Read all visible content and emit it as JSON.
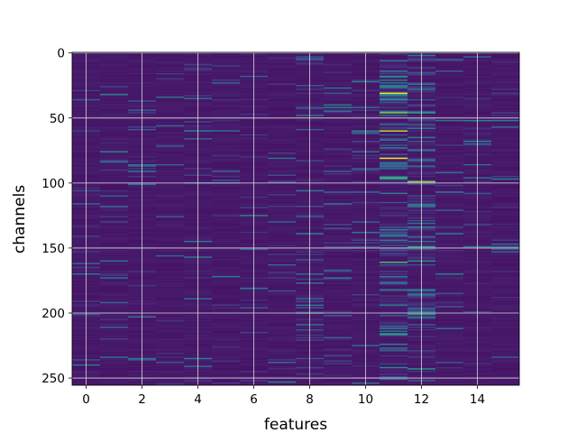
{
  "chart_data": {
    "type": "heatmap",
    "xlabel": "features",
    "ylabel": "channels",
    "x_ticks": [
      0,
      2,
      4,
      6,
      8,
      10,
      12,
      14
    ],
    "y_ticks": [
      0,
      50,
      100,
      150,
      200,
      250
    ],
    "xlim": [
      -0.5,
      15.5
    ],
    "ylim": [
      255.5,
      -0.5
    ],
    "grid": true,
    "colormap": "viridis",
    "colormap_stops": [
      "#440154",
      "#482878",
      "#3e4a89",
      "#31688e",
      "#26828e",
      "#1f9e89",
      "#35b779",
      "#6dcd59",
      "#b4de2c",
      "#fde725"
    ],
    "n_features": 16,
    "n_channels": 256,
    "value_range": [
      0,
      1
    ],
    "column_activity": [
      0.04,
      0.05,
      0.05,
      0.04,
      0.05,
      0.06,
      0.06,
      0.05,
      0.09,
      0.1,
      0.08,
      0.26,
      0.2,
      0.06,
      0.05,
      0.04
    ],
    "bright_cells": [
      {
        "feature": 11,
        "channel": 31,
        "value": 1.0
      },
      {
        "feature": 11,
        "channel": 81,
        "value": 1.0
      },
      {
        "feature": 11,
        "channel": 60,
        "value": 0.9
      },
      {
        "feature": 11,
        "channel": 46,
        "value": 0.8
      },
      {
        "feature": 11,
        "channel": 96,
        "value": 0.7
      },
      {
        "feature": 11,
        "channel": 161,
        "value": 0.7
      },
      {
        "feature": 11,
        "channel": 216,
        "value": 0.6
      },
      {
        "feature": 11,
        "channel": 18,
        "value": 0.55
      },
      {
        "feature": 11,
        "channel": 36,
        "value": 0.5
      },
      {
        "feature": 11,
        "channel": 242,
        "value": 0.5
      },
      {
        "feature": 12,
        "channel": 99,
        "value": 0.85
      },
      {
        "feature": 12,
        "channel": 46,
        "value": 0.6
      },
      {
        "feature": 12,
        "channel": 149,
        "value": 0.6
      },
      {
        "feature": 12,
        "channel": 201,
        "value": 0.55
      },
      {
        "feature": 12,
        "channel": 243,
        "value": 0.55
      },
      {
        "feature": 12,
        "channel": 160,
        "value": 0.5
      },
      {
        "feature": 12,
        "channel": 117,
        "value": 0.45
      },
      {
        "feature": 12,
        "channel": 75,
        "value": 0.4
      },
      {
        "feature": 9,
        "channel": 31,
        "value": 0.3
      },
      {
        "feature": 13,
        "channel": 14,
        "value": 0.3
      },
      {
        "feature": 9,
        "channel": 167,
        "value": 0.3
      },
      {
        "feature": 13,
        "channel": 238,
        "value": 0.25
      }
    ]
  }
}
